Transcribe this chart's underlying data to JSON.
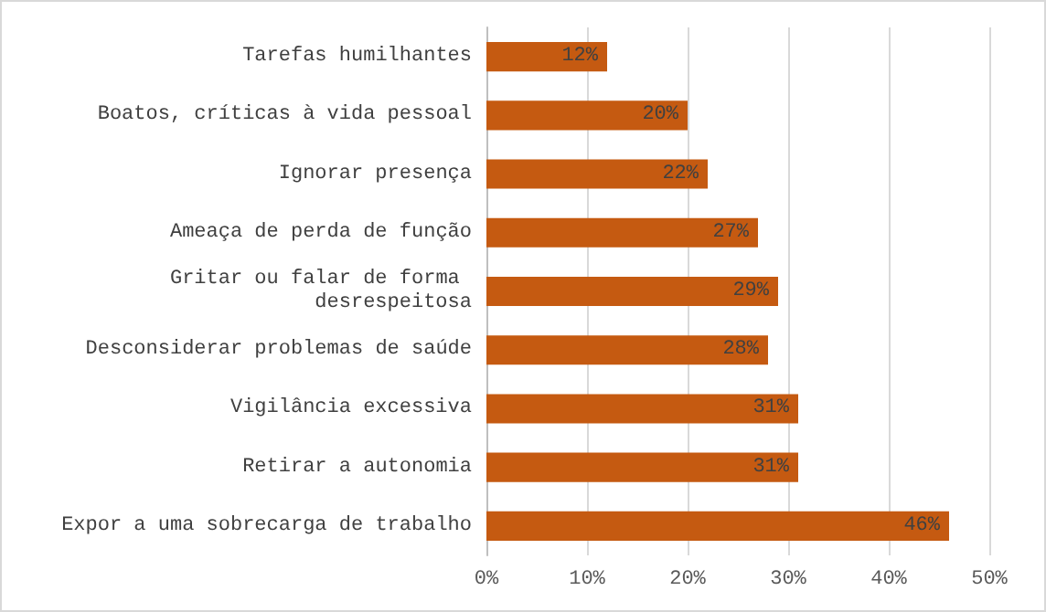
{
  "chart_data": {
    "type": "bar",
    "orientation": "horizontal",
    "categories": [
      "Tarefas humilhantes",
      "Boatos, críticas à vida pessoal",
      "Ignorar presença",
      "Ameaça de perda de função",
      "Gritar ou falar de forma desrespeitosa",
      "Desconsiderar problemas de saúde",
      "Vigilância excessiva",
      "Retirar a autonomia",
      "Expor a uma sobrecarga de trabalho"
    ],
    "values": [
      12,
      20,
      22,
      27,
      29,
      28,
      31,
      31,
      46
    ],
    "value_labels": [
      "12%",
      "20%",
      "22%",
      "27%",
      "29%",
      "28%",
      "31%",
      "31%",
      "46%"
    ],
    "color": "#c55a11",
    "xlim": [
      0,
      50
    ],
    "xticks": [
      {
        "value": 0,
        "label": "0%"
      },
      {
        "value": 10,
        "label": "10%"
      },
      {
        "value": 20,
        "label": "20%"
      },
      {
        "value": 30,
        "label": "30%"
      },
      {
        "value": 40,
        "label": "40%"
      },
      {
        "value": 50,
        "label": "50%"
      }
    ],
    "grid": "x"
  }
}
